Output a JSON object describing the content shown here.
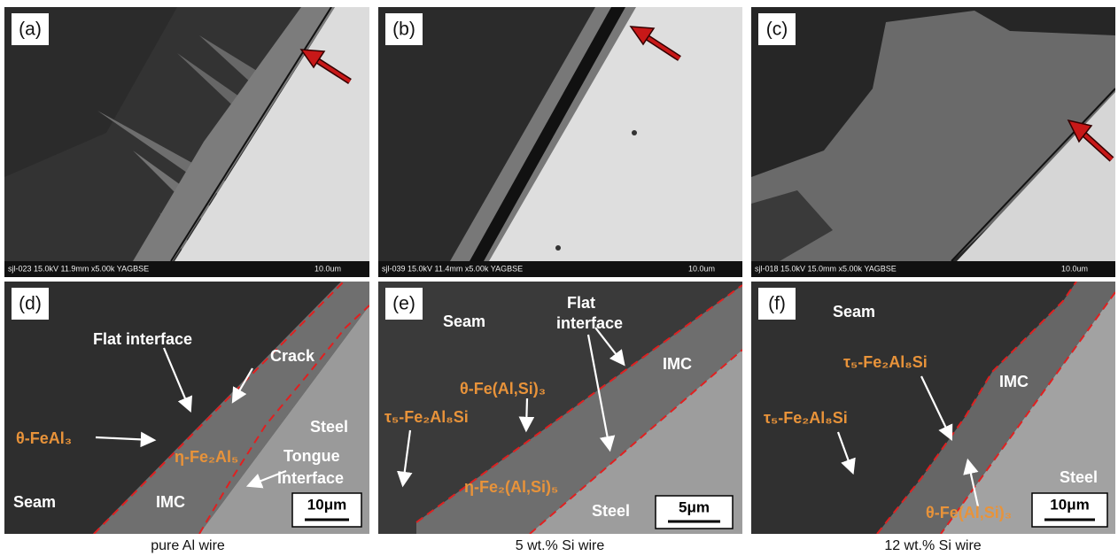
{
  "panels": [
    {
      "label": "(a)",
      "info": "sjl-023 15.0kV 11.9mm x5.00k YAGBSE",
      "scale": "10.0um"
    },
    {
      "label": "(b)",
      "info": "sjl-039 15.0kV 11.4mm x5.00k YAGBSE",
      "scale": "10.0um"
    },
    {
      "label": "(c)",
      "info": "sjl-018 15.0kV 15.0mm x5.00k YAGBSE",
      "scale": "10.0um"
    },
    {
      "label": "(d)",
      "annotations": [
        "Flat interface",
        "Crack",
        "Steel",
        "θ-FeAl₃",
        "η-Fe₂Al₅",
        "Tongue",
        "interface",
        "Seam",
        "IMC"
      ],
      "scale_bar": "10μm"
    },
    {
      "label": "(e)",
      "annotations": [
        "Flat",
        "interface",
        "Seam",
        "IMC",
        "θ-Fe(Al,Si)₃",
        "τ₅-Fe₂Al₈Si",
        "η-Fe₂(Al,Si)₅",
        "Steel"
      ],
      "scale_bar": "5μm"
    },
    {
      "label": "(f)",
      "annotations": [
        "Seam",
        "τ₅-Fe₂Al₈Si",
        "IMC",
        "τ₅-Fe₂Al₈Si",
        "Steel",
        "θ-Fe(Al,Si)₃"
      ],
      "scale_bar": "10μm"
    }
  ],
  "captions": [
    "pure Al wire",
    "5 wt.% Si wire",
    "12 wt.% Si wire"
  ]
}
